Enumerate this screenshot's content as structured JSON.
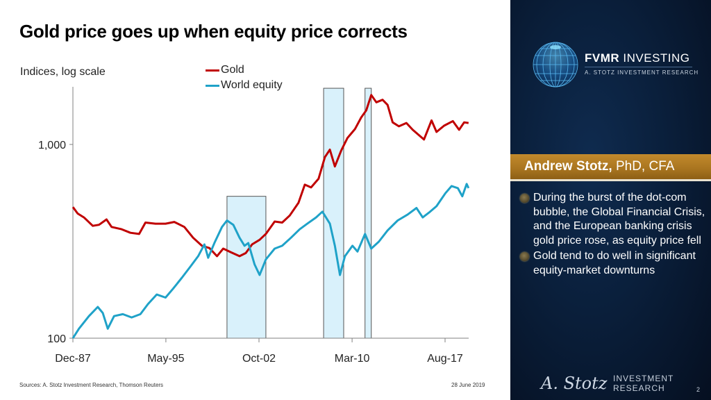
{
  "slide": {
    "title": "Gold price goes up when equity price corrects",
    "sources": "Sources: A. Stotz Investment Research, Thomson Reuters",
    "date": "28 June 2019",
    "page_number": "2"
  },
  "sidebar": {
    "brand_bold": "FVMR",
    "brand_rest": "INVESTING",
    "brand_sub": "A. STOTZ INVESTMENT RESEARCH",
    "presenter_name": "Andrew Stotz,",
    "presenter_credentials": "PhD, CFA",
    "bullets": [
      "During the burst of the dot-com bubble, the Global Financial Crisis, and the European banking crisis gold price rose, as equity price fell",
      "Gold tend to do well in significant equity-market downturns"
    ],
    "footer_signature": "A. Stotz",
    "footer_line1": "INVESTMENT",
    "footer_line2": "RESEARCH",
    "colors": {
      "panel": "#0a1f3b",
      "gold_bar": "#a8741f"
    }
  },
  "chart_data": {
    "type": "line",
    "title": "Gold price goes up when equity price corrects",
    "ylabel": "Indices, log scale",
    "xlabel": "",
    "yscale": "log",
    "ylim": [
      100,
      2000
    ],
    "xlim": [
      1987.92,
      2019.8
    ],
    "y_ticks": [
      {
        "value": 100,
        "label": "100"
      },
      {
        "value": 1000,
        "label": "1,000"
      }
    ],
    "x_ticks": [
      {
        "value": 1987.92,
        "label": "Dec-87"
      },
      {
        "value": 1995.33,
        "label": "May-95"
      },
      {
        "value": 2002.75,
        "label": "Oct-02"
      },
      {
        "value": 2010.17,
        "label": "Mar-10"
      },
      {
        "value": 2017.58,
        "label": "Aug-17"
      }
    ],
    "grid": false,
    "legend_position": "top-center",
    "shaded_periods": [
      {
        "name": "Dot-com bust",
        "start": 2000.2,
        "end": 2003.3,
        "top_value": 540
      },
      {
        "name": "Global Financial Crisis",
        "start": 2007.9,
        "end": 2009.5,
        "top_value": 1950
      },
      {
        "name": "European banking crisis",
        "start": 2011.2,
        "end": 2011.7,
        "top_value": 1950
      }
    ],
    "series": [
      {
        "name": "Gold",
        "color": "#c00000",
        "points": [
          [
            1987.92,
            475
          ],
          [
            1988.3,
            440
          ],
          [
            1988.8,
            420
          ],
          [
            1989.5,
            380
          ],
          [
            1990.0,
            385
          ],
          [
            1990.6,
            410
          ],
          [
            1991.0,
            375
          ],
          [
            1991.8,
            365
          ],
          [
            1992.5,
            350
          ],
          [
            1993.2,
            345
          ],
          [
            1993.7,
            395
          ],
          [
            1994.5,
            390
          ],
          [
            1995.3,
            390
          ],
          [
            1996.0,
            398
          ],
          [
            1996.8,
            375
          ],
          [
            1997.5,
            330
          ],
          [
            1998.2,
            300
          ],
          [
            1998.8,
            292
          ],
          [
            1999.4,
            265
          ],
          [
            1999.9,
            290
          ],
          [
            2000.5,
            278
          ],
          [
            2001.2,
            265
          ],
          [
            2001.7,
            275
          ],
          [
            2002.2,
            305
          ],
          [
            2002.8,
            322
          ],
          [
            2003.3,
            345
          ],
          [
            2004.0,
            400
          ],
          [
            2004.6,
            395
          ],
          [
            2005.2,
            430
          ],
          [
            2005.9,
            500
          ],
          [
            2006.4,
            620
          ],
          [
            2006.9,
            600
          ],
          [
            2007.5,
            665
          ],
          [
            2008.0,
            860
          ],
          [
            2008.4,
            940
          ],
          [
            2008.8,
            770
          ],
          [
            2009.3,
            930
          ],
          [
            2009.8,
            1080
          ],
          [
            2010.4,
            1200
          ],
          [
            2010.9,
            1380
          ],
          [
            2011.3,
            1500
          ],
          [
            2011.7,
            1800
          ],
          [
            2012.1,
            1650
          ],
          [
            2012.6,
            1700
          ],
          [
            2013.0,
            1600
          ],
          [
            2013.4,
            1300
          ],
          [
            2013.9,
            1240
          ],
          [
            2014.5,
            1290
          ],
          [
            2015.0,
            1190
          ],
          [
            2015.9,
            1060
          ],
          [
            2016.5,
            1330
          ],
          [
            2016.9,
            1160
          ],
          [
            2017.5,
            1250
          ],
          [
            2018.2,
            1320
          ],
          [
            2018.7,
            1190
          ],
          [
            2019.1,
            1300
          ],
          [
            2019.45,
            1290
          ]
        ]
      },
      {
        "name": "World equity",
        "color": "#1fa2c8",
        "points": [
          [
            1987.92,
            100
          ],
          [
            1988.4,
            112
          ],
          [
            1989.2,
            130
          ],
          [
            1989.9,
            145
          ],
          [
            1990.3,
            135
          ],
          [
            1990.7,
            112
          ],
          [
            1991.2,
            130
          ],
          [
            1991.9,
            133
          ],
          [
            1992.6,
            128
          ],
          [
            1993.3,
            133
          ],
          [
            1993.9,
            150
          ],
          [
            1994.6,
            168
          ],
          [
            1995.3,
            162
          ],
          [
            1995.9,
            180
          ],
          [
            1996.6,
            205
          ],
          [
            1997.3,
            235
          ],
          [
            1997.9,
            265
          ],
          [
            1998.4,
            305
          ],
          [
            1998.7,
            260
          ],
          [
            1999.2,
            310
          ],
          [
            1999.8,
            375
          ],
          [
            2000.2,
            405
          ],
          [
            2000.7,
            385
          ],
          [
            2001.2,
            330
          ],
          [
            2001.6,
            300
          ],
          [
            2001.9,
            310
          ],
          [
            2002.4,
            240
          ],
          [
            2002.8,
            212
          ],
          [
            2003.3,
            255
          ],
          [
            2004.0,
            290
          ],
          [
            2004.6,
            300
          ],
          [
            2005.3,
            330
          ],
          [
            2006.0,
            365
          ],
          [
            2006.6,
            390
          ],
          [
            2007.3,
            420
          ],
          [
            2007.8,
            450
          ],
          [
            2008.4,
            390
          ],
          [
            2008.8,
            300
          ],
          [
            2009.2,
            212
          ],
          [
            2009.6,
            265
          ],
          [
            2010.2,
            300
          ],
          [
            2010.6,
            280
          ],
          [
            2011.2,
            345
          ],
          [
            2011.7,
            290
          ],
          [
            2012.3,
            315
          ],
          [
            2013.0,
            360
          ],
          [
            2013.8,
            405
          ],
          [
            2014.6,
            435
          ],
          [
            2015.3,
            470
          ],
          [
            2015.8,
            420
          ],
          [
            2016.3,
            445
          ],
          [
            2016.9,
            480
          ],
          [
            2017.6,
            560
          ],
          [
            2018.1,
            610
          ],
          [
            2018.6,
            595
          ],
          [
            2018.95,
            540
          ],
          [
            2019.3,
            625
          ],
          [
            2019.45,
            595
          ]
        ]
      }
    ]
  }
}
